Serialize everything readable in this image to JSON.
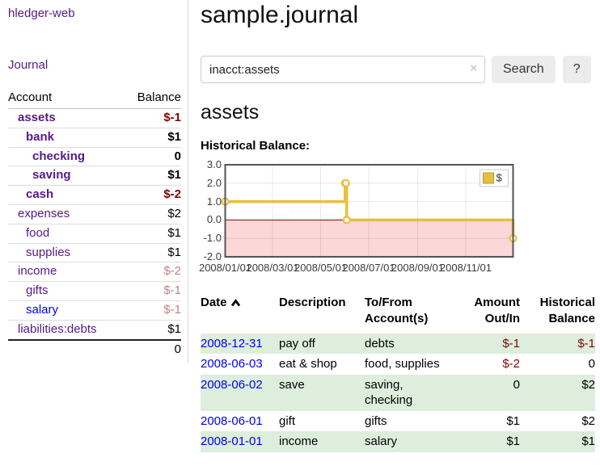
{
  "app": {
    "title": "hledger-web"
  },
  "sidebar": {
    "journal_link": "Journal",
    "accounts": {
      "header": {
        "account": "Account",
        "balance": "Balance"
      },
      "rows": [
        {
          "name": "assets",
          "balance": "$-1"
        },
        {
          "name": "bank",
          "balance": "$1"
        },
        {
          "name": "checking",
          "balance": "0"
        },
        {
          "name": "saving",
          "balance": "$1"
        },
        {
          "name": "cash",
          "balance": "$-2"
        },
        {
          "name": "expenses",
          "balance": "$2"
        },
        {
          "name": "food",
          "balance": "$1"
        },
        {
          "name": "supplies",
          "balance": "$1"
        },
        {
          "name": "income",
          "balance": "$-2"
        },
        {
          "name": "gifts",
          "balance": "$-1"
        },
        {
          "name": "salary",
          "balance": "$-1"
        },
        {
          "name": "liabilities:debts",
          "balance": "$1"
        }
      ],
      "total": "0"
    }
  },
  "main": {
    "title": "sample.journal",
    "search": {
      "value": "inacct:assets",
      "clear_icon": "×",
      "search_button": "Search",
      "help_button": "?"
    },
    "account_heading": "assets"
  },
  "chart_data": {
    "type": "line",
    "step": true,
    "title": "Historical Balance:",
    "series": [
      {
        "name": "$",
        "color": "#e7bf40",
        "points": [
          [
            "2008-01-01",
            1
          ],
          [
            "2008-06-01",
            2
          ],
          [
            "2008-06-02",
            2
          ],
          [
            "2008-06-03",
            0
          ],
          [
            "2008-12-31",
            -1
          ]
        ]
      }
    ],
    "x_range": [
      "2008-01-01",
      "2008-12-31"
    ],
    "ylim": [
      -2,
      3
    ],
    "y_ticks": [
      3,
      2,
      1,
      0,
      -1,
      -2
    ],
    "x_ticks": [
      "2008-01-01",
      "2008-03-01",
      "2008-05-01",
      "2008-07-01",
      "2008-09-01",
      "2008-11-01"
    ],
    "x_tick_labels": [
      "2008/01/01",
      "2008/03/01",
      "2008/05/01",
      "2008/07/01",
      "2008/09/01",
      "2008/11/01"
    ],
    "legend_position": "top-right",
    "grid": true,
    "negative_region_color": "#fbd7d7",
    "zero_line_color": "#8b0000"
  },
  "register": {
    "columns": [
      {
        "line1": "Date",
        "line2": ""
      },
      {
        "line1": "Description",
        "line2": ""
      },
      {
        "line1": "To/From",
        "line2": "Account(s)"
      },
      {
        "line1": "Amount",
        "line2": "Out/In"
      },
      {
        "line1": "Historical",
        "line2": "Balance"
      }
    ],
    "rows": [
      {
        "date": "2008-12-31",
        "description": "pay off",
        "accounts": "debts",
        "amount": "$-1",
        "balance": "$-1"
      },
      {
        "date": "2008-06-03",
        "description": "eat & shop",
        "accounts": "food, supplies",
        "amount": "$-2",
        "balance": "0"
      },
      {
        "date": "2008-06-02",
        "description": "save",
        "accounts": "saving, checking",
        "amount": "0",
        "balance": "$2"
      },
      {
        "date": "2008-06-01",
        "description": "gift",
        "accounts": "gifts",
        "amount": "$1",
        "balance": "$2"
      },
      {
        "date": "2008-01-01",
        "description": "income",
        "accounts": "salary",
        "amount": "$1",
        "balance": "$1"
      }
    ]
  },
  "colors": {
    "link_purple": "#551a8b",
    "link_blue": "#0000ee",
    "negative": "#880000",
    "negative_faded": "rgba(136,0,0,0.5)",
    "row_stripe_green": "#ddeedd",
    "chart_line_gold": "#e7bf40"
  }
}
